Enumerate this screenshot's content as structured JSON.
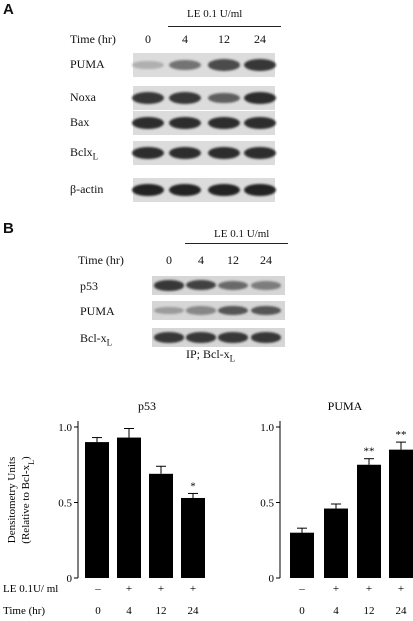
{
  "panel_a": {
    "letter": "A",
    "treatment_label": "LE 0.1 U/ml",
    "time_label": "Time (hr)",
    "timepoints": [
      "0",
      "4",
      "12",
      "24"
    ],
    "rows": [
      {
        "label": "PUMA",
        "intensities": [
          0.25,
          0.55,
          0.75,
          0.85
        ]
      },
      {
        "label": "Noxa",
        "intensities": [
          0.85,
          0.85,
          0.65,
          0.9
        ]
      },
      {
        "label": "Bax",
        "intensities": [
          0.9,
          0.9,
          0.9,
          0.9
        ]
      },
      {
        "label": "Bclx",
        "sub": "L",
        "intensities": [
          0.9,
          0.9,
          0.9,
          0.9
        ]
      },
      {
        "label": "β-actin",
        "intensities": [
          0.95,
          0.95,
          0.95,
          0.95
        ]
      }
    ]
  },
  "panel_b": {
    "letter": "B",
    "treatment_label": "LE 0.1 U/ml",
    "time_label": "Time (hr)",
    "timepoints": [
      "0",
      "4",
      "12",
      "24"
    ],
    "rows": [
      {
        "label": "p53",
        "intensities": [
          0.85,
          0.8,
          0.6,
          0.5
        ]
      },
      {
        "label": "PUMA",
        "intensities": [
          0.35,
          0.45,
          0.7,
          0.7
        ]
      },
      {
        "label": "Bcl-x",
        "sub": "L",
        "intensities": [
          0.85,
          0.85,
          0.85,
          0.85
        ]
      }
    ],
    "ip_label": "IP;  Bcl-x",
    "ip_sub": "L"
  },
  "chart_data": [
    {
      "type": "bar",
      "title": "p53",
      "categories": [
        "0",
        "4",
        "12",
        "24"
      ],
      "values": [
        0.9,
        0.93,
        0.69,
        0.53
      ],
      "errors": [
        0.03,
        0.06,
        0.05,
        0.03
      ],
      "significance": [
        "",
        "",
        "",
        "*"
      ],
      "ylim": [
        0,
        1.0
      ],
      "yticks": [
        "0",
        "0.5",
        "1.0"
      ],
      "ylabel": "Densitometry Units",
      "ylabel2": "(Relative to Bcl-x",
      "ylabel2_sub": "L",
      "ylabel2_end": ")",
      "color": "#000000"
    },
    {
      "type": "bar",
      "title": "PUMA",
      "categories": [
        "0",
        "4",
        "12",
        "24"
      ],
      "values": [
        0.3,
        0.46,
        0.75,
        0.85
      ],
      "errors": [
        0.03,
        0.03,
        0.04,
        0.05
      ],
      "significance": [
        "",
        "",
        "**",
        "**"
      ],
      "ylim": [
        0,
        1.0
      ],
      "yticks": [
        "0",
        "0.5",
        "1.0"
      ],
      "color": "#000000"
    }
  ],
  "x_table": {
    "le_label": "LE  0.1U/ ml",
    "le_values": [
      "–",
      "+",
      "+",
      "+"
    ],
    "time_label": "Time   (hr)",
    "time_values": [
      "0",
      "4",
      "12",
      "24"
    ]
  }
}
